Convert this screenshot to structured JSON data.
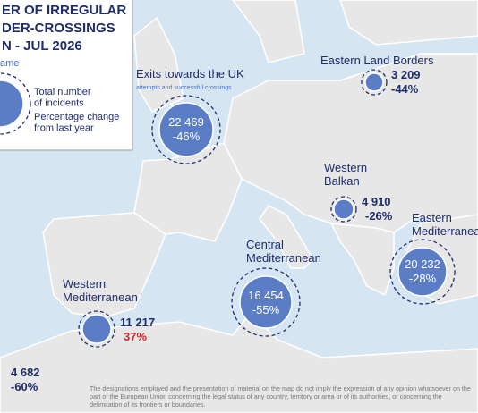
{
  "legend": {
    "title_lines": [
      "ER OF IRREGULAR",
      "DER-CROSSINGS",
      "N - JUL 2026"
    ],
    "name_label": "ame",
    "incidents_label": "Total number\nof incidents",
    "change_label": "Percentage change\nfrom last year"
  },
  "routes": [
    {
      "name": "Exits towards the UK",
      "subtitle": "attempts and successful crossings",
      "incidents": "22 469",
      "change": "-46%"
    },
    {
      "name": "Eastern Land Borders",
      "incidents": "3 209",
      "change": "-44%"
    },
    {
      "name": "Western\nBalkan",
      "incidents": "4 910",
      "change": "-26%"
    },
    {
      "name": "Eastern\nMediterranean",
      "incidents": "20 232",
      "change": "-28%"
    },
    {
      "name": "Central\nMediterranean",
      "incidents": "16 454",
      "change": "-55%"
    },
    {
      "name": "Western\nMediterranean",
      "incidents": "11 217",
      "change": "37%"
    },
    {
      "incidents": "4 682",
      "change": "-60%"
    }
  ],
  "disclaimer": "The designations employed and the presentation of material on the map do not imply the expression of any opinion whatsoever on the part of the European Union concerning the legal status of any country, territory or area or of its authorities, or concerning the delimitation of its frontiers or boundaries."
}
